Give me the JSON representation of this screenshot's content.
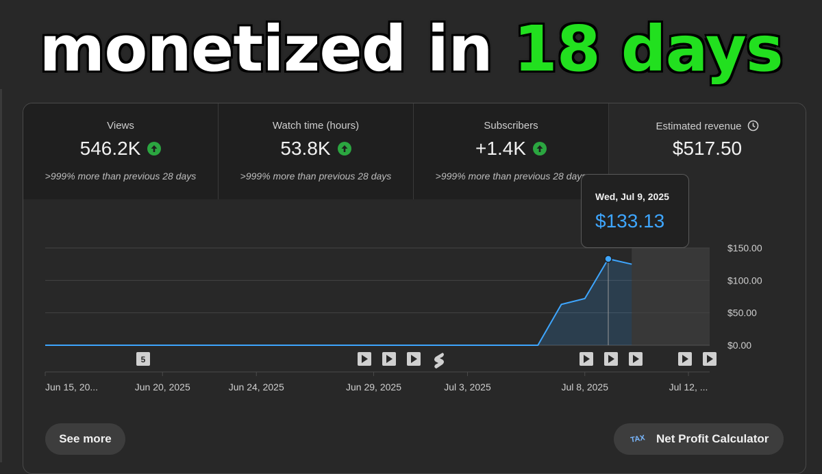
{
  "headline": {
    "part1": "monetized in",
    "part2": "18 days"
  },
  "stats": [
    {
      "label": "Views",
      "value": "546.2K",
      "sub": ">999% more than previous 28 days"
    },
    {
      "label": "Watch time (hours)",
      "value": "53.8K",
      "sub": ">999% more than previous 28 days"
    },
    {
      "label": "Subscribers",
      "value": "+1.4K",
      "sub": ">999% more than previous 28 days"
    },
    {
      "label": "Estimated revenue",
      "value": "$517.50"
    }
  ],
  "tooltip": {
    "date": "Wed, Jul 9, 2025",
    "value": "$133.13"
  },
  "chart_data": {
    "type": "area",
    "x": [
      "Jun 15, 2025",
      "Jun 16, 2025",
      "Jun 17, 2025",
      "Jun 18, 2025",
      "Jun 19, 2025",
      "Jun 20, 2025",
      "Jun 21, 2025",
      "Jun 22, 2025",
      "Jun 23, 2025",
      "Jun 24, 2025",
      "Jun 25, 2025",
      "Jun 26, 2025",
      "Jun 27, 2025",
      "Jun 28, 2025",
      "Jun 29, 2025",
      "Jun 30, 2025",
      "Jul 1, 2025",
      "Jul 2, 2025",
      "Jul 3, 2025",
      "Jul 4, 2025",
      "Jul 5, 2025",
      "Jul 6, 2025",
      "Jul 7, 2025",
      "Jul 8, 2025",
      "Jul 9, 2025",
      "Jul 10, 2025"
    ],
    "values": [
      0,
      0,
      0,
      0,
      0,
      0,
      0,
      0,
      0,
      0,
      0,
      0,
      0,
      0,
      0,
      0,
      0,
      0,
      0,
      0,
      0,
      0,
      63,
      72,
      133.13,
      125
    ],
    "xtick_labels": [
      "Jun 15, 20...",
      "Jun 20, 2025",
      "Jun 24, 2025",
      "Jun 29, 2025",
      "Jul 3, 2025",
      "Jul 8, 2025",
      "Jul 12, ..."
    ],
    "ytick_labels": [
      "$150.00",
      "$100.00",
      "$50.00",
      "$0.00"
    ],
    "ylim": [
      0,
      150
    ],
    "grid": true,
    "highlighted_point": "Jul 9, 2025",
    "line_color": "#3ea6ff",
    "marker_labels": {
      "shorts_count": "5"
    }
  },
  "buttons": {
    "see_more": "See more",
    "net_profit": "Net Profit Calculator",
    "npc_logo_text": "TAX"
  },
  "colors": {
    "accent": "#3ea6ff",
    "up": "#2ba640",
    "headline_green": "#22e01f"
  }
}
